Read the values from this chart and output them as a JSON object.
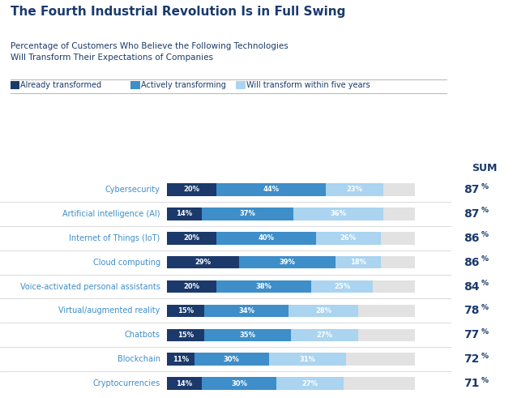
{
  "title": "The Fourth Industrial Revolution Is in Full Swing",
  "subtitle1": "Percentage of Customers Who Believe the Following Technologies",
  "subtitle2": "Will Transform Their Expectations of Companies",
  "legend_labels": [
    "Already transformed",
    "Actively transforming",
    "Will transform within five years"
  ],
  "colors": [
    "#1b3a6b",
    "#3d8ec9",
    "#aad4ef"
  ],
  "categories": [
    "Cybersecurity",
    "Artificial intelligence (AI)",
    "Internet of Things (IoT)",
    "Cloud computing",
    "Voice-activated personal assistants",
    "Virtual/augmented reality",
    "Chatbots",
    "Blockchain",
    "Cryptocurrencies"
  ],
  "values": [
    [
      20,
      44,
      23
    ],
    [
      14,
      37,
      36
    ],
    [
      20,
      40,
      26
    ],
    [
      29,
      39,
      18
    ],
    [
      20,
      38,
      25
    ],
    [
      15,
      34,
      28
    ],
    [
      15,
      35,
      27
    ],
    [
      11,
      30,
      31
    ],
    [
      14,
      30,
      27
    ]
  ],
  "sums": [
    87,
    87,
    86,
    86,
    84,
    78,
    77,
    72,
    71
  ],
  "text_color_dark": "#1b3a6b",
  "text_color_label": "#3d8ec9",
  "background_color": "#ffffff",
  "bar_bg_color": "#e2e2e2",
  "sum_label": "SUM",
  "fig_width": 6.33,
  "fig_height": 4.91,
  "dpi": 100
}
